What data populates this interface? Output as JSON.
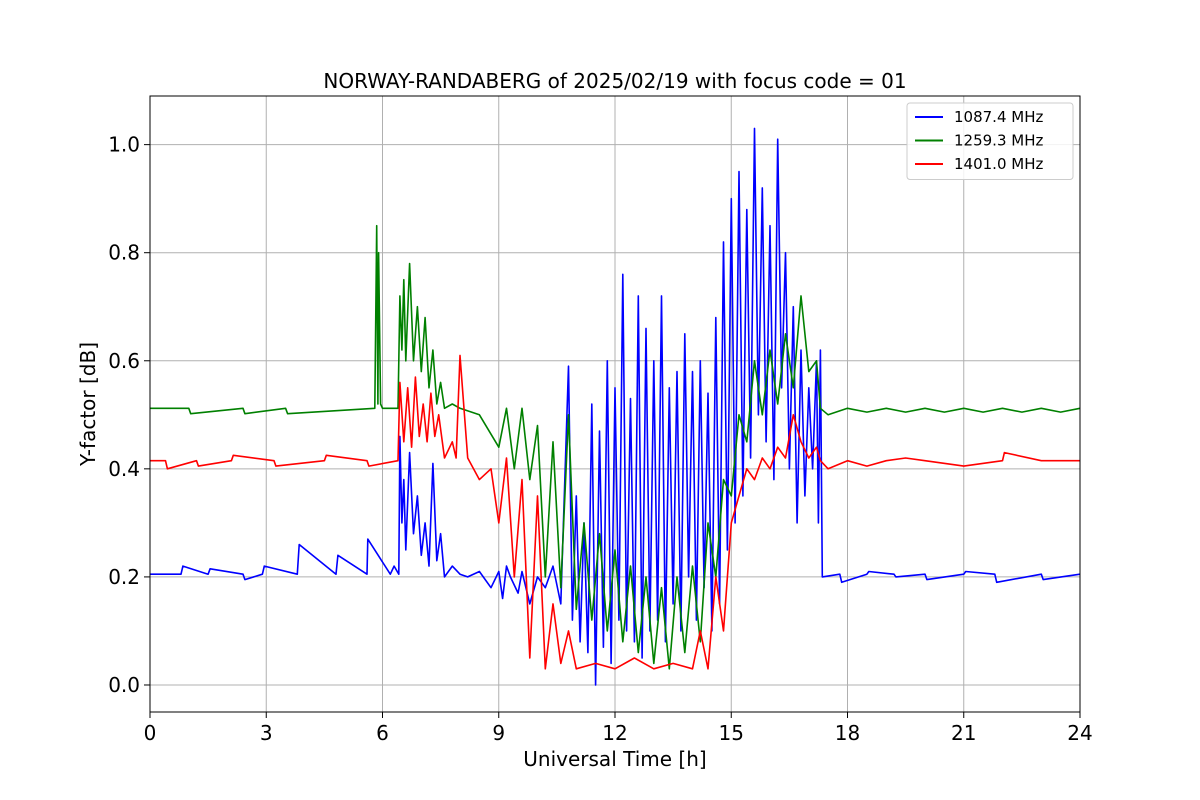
{
  "chart_data": {
    "type": "line",
    "title": "NORWAY-RANDABERG of 2025/02/19 with focus code = 01",
    "xlabel": "Universal Time [h]",
    "ylabel": "Y-factor [dB]",
    "xlim": [
      0,
      24
    ],
    "ylim": [
      -0.05,
      1.09
    ],
    "xticks": [
      0,
      3,
      6,
      9,
      12,
      15,
      18,
      21,
      24
    ],
    "xtick_labels": [
      "0",
      "3",
      "6",
      "9",
      "12",
      "15",
      "18",
      "21",
      "24"
    ],
    "yticks": [
      0.0,
      0.2,
      0.4,
      0.6,
      0.8,
      1.0
    ],
    "ytick_labels": [
      "0.0",
      "0.2",
      "0.4",
      "0.6",
      "0.8",
      "1.0"
    ],
    "grid": true,
    "legend_position": "top-right",
    "series": [
      {
        "name": "1087.4 MHz",
        "color": "#0000ff",
        "x": [
          0,
          0.8,
          0.85,
          1.5,
          1.55,
          2.4,
          2.45,
          2.9,
          2.95,
          3.8,
          3.85,
          4.8,
          4.85,
          5.6,
          5.62,
          6.2,
          6.3,
          6.42,
          6.45,
          6.5,
          6.55,
          6.6,
          6.7,
          6.8,
          6.9,
          7.0,
          7.1,
          7.2,
          7.3,
          7.4,
          7.5,
          7.6,
          7.8,
          8.0,
          8.2,
          8.5,
          8.8,
          9.0,
          9.1,
          9.2,
          9.3,
          9.5,
          9.6,
          9.8,
          10.0,
          10.2,
          10.4,
          10.6,
          10.8,
          10.9,
          11.0,
          11.1,
          11.2,
          11.3,
          11.4,
          11.5,
          11.6,
          11.7,
          11.8,
          11.9,
          12.0,
          12.1,
          12.2,
          12.3,
          12.4,
          12.5,
          12.6,
          12.7,
          12.8,
          12.9,
          13.0,
          13.1,
          13.2,
          13.3,
          13.4,
          13.5,
          13.6,
          13.7,
          13.8,
          13.9,
          14.0,
          14.1,
          14.2,
          14.3,
          14.4,
          14.5,
          14.6,
          14.7,
          14.8,
          14.9,
          15.0,
          15.1,
          15.2,
          15.3,
          15.4,
          15.5,
          15.6,
          15.7,
          15.8,
          15.9,
          16.0,
          16.1,
          16.2,
          16.3,
          16.4,
          16.5,
          16.6,
          16.7,
          16.8,
          16.9,
          17.0,
          17.1,
          17.2,
          17.25,
          17.3,
          17.35,
          17.8,
          17.85,
          18.5,
          18.55,
          19.2,
          19.25,
          20.0,
          20.05,
          21.0,
          21.05,
          21.8,
          21.85,
          23.0,
          23.05,
          24
        ],
        "y": [
          0.205,
          0.205,
          0.22,
          0.205,
          0.215,
          0.205,
          0.195,
          0.205,
          0.22,
          0.205,
          0.26,
          0.205,
          0.24,
          0.205,
          0.27,
          0.205,
          0.22,
          0.205,
          0.46,
          0.3,
          0.38,
          0.25,
          0.43,
          0.28,
          0.35,
          0.24,
          0.3,
          0.22,
          0.41,
          0.23,
          0.28,
          0.2,
          0.22,
          0.205,
          0.2,
          0.21,
          0.18,
          0.21,
          0.16,
          0.22,
          0.2,
          0.17,
          0.21,
          0.15,
          0.2,
          0.18,
          0.22,
          0.15,
          0.59,
          0.12,
          0.35,
          0.08,
          0.3,
          0.06,
          0.52,
          0.0,
          0.47,
          0.07,
          0.6,
          0.04,
          0.55,
          0.12,
          0.76,
          0.1,
          0.53,
          0.08,
          0.72,
          0.05,
          0.66,
          0.1,
          0.6,
          0.12,
          0.72,
          0.08,
          0.55,
          0.15,
          0.58,
          0.1,
          0.65,
          0.2,
          0.58,
          0.12,
          0.6,
          0.18,
          0.54,
          0.1,
          0.68,
          0.15,
          0.82,
          0.25,
          0.9,
          0.3,
          0.95,
          0.35,
          0.88,
          0.42,
          1.03,
          0.5,
          0.92,
          0.45,
          0.85,
          0.38,
          1.01,
          0.55,
          0.8,
          0.4,
          0.7,
          0.3,
          0.62,
          0.35,
          0.55,
          0.4,
          0.6,
          0.3,
          0.62,
          0.2,
          0.205,
          0.19,
          0.205,
          0.21,
          0.205,
          0.2,
          0.205,
          0.195,
          0.205,
          0.21,
          0.205,
          0.19,
          0.205,
          0.195,
          0.205
        ]
      },
      {
        "name": "1259.3 MHz",
        "color": "#008000",
        "x": [
          0,
          1.0,
          1.05,
          2.4,
          2.45,
          3.5,
          3.55,
          5.8,
          5.85,
          5.88,
          5.9,
          5.95,
          6.0,
          6.4,
          6.45,
          6.5,
          6.55,
          6.6,
          6.7,
          6.8,
          6.9,
          7.0,
          7.1,
          7.2,
          7.3,
          7.4,
          7.5,
          7.6,
          7.8,
          8.0,
          8.5,
          9.0,
          9.2,
          9.4,
          9.6,
          9.8,
          10.0,
          10.2,
          10.4,
          10.6,
          10.8,
          11.0,
          11.2,
          11.4,
          11.6,
          11.8,
          12.0,
          12.2,
          12.4,
          12.6,
          12.8,
          13.0,
          13.2,
          13.4,
          13.6,
          13.8,
          14.0,
          14.2,
          14.4,
          14.6,
          14.8,
          15.0,
          15.2,
          15.4,
          15.6,
          15.8,
          16.0,
          16.2,
          16.4,
          16.6,
          16.8,
          17.0,
          17.2,
          17.3,
          17.5,
          18.0,
          18.5,
          19.0,
          19.5,
          20.0,
          20.5,
          21.0,
          21.5,
          22.0,
          22.5,
          23.0,
          23.5,
          24
        ],
        "y": [
          0.512,
          0.512,
          0.502,
          0.512,
          0.502,
          0.512,
          0.502,
          0.512,
          0.85,
          0.52,
          0.8,
          0.52,
          0.512,
          0.512,
          0.72,
          0.62,
          0.75,
          0.6,
          0.78,
          0.6,
          0.7,
          0.58,
          0.68,
          0.55,
          0.62,
          0.52,
          0.56,
          0.512,
          0.52,
          0.512,
          0.5,
          0.44,
          0.512,
          0.4,
          0.512,
          0.38,
          0.48,
          0.2,
          0.45,
          0.18,
          0.5,
          0.14,
          0.3,
          0.12,
          0.28,
          0.1,
          0.25,
          0.08,
          0.22,
          0.06,
          0.2,
          0.04,
          0.18,
          0.03,
          0.2,
          0.06,
          0.22,
          0.08,
          0.3,
          0.2,
          0.38,
          0.35,
          0.5,
          0.45,
          0.6,
          0.5,
          0.62,
          0.52,
          0.65,
          0.55,
          0.72,
          0.58,
          0.6,
          0.512,
          0.5,
          0.512,
          0.505,
          0.512,
          0.505,
          0.512,
          0.505,
          0.512,
          0.505,
          0.512,
          0.505,
          0.512,
          0.505,
          0.512
        ]
      },
      {
        "name": "1401.0 MHz",
        "color": "#ff0000",
        "x": [
          0,
          0.4,
          0.45,
          1.2,
          1.25,
          2.1,
          2.15,
          3.2,
          3.25,
          4.5,
          4.55,
          5.6,
          5.65,
          6.4,
          6.45,
          6.55,
          6.65,
          6.75,
          6.85,
          6.95,
          7.05,
          7.15,
          7.25,
          7.35,
          7.45,
          7.6,
          7.8,
          7.9,
          8.0,
          8.2,
          8.5,
          8.8,
          9.0,
          9.2,
          9.4,
          9.6,
          9.8,
          10.0,
          10.2,
          10.4,
          10.6,
          10.8,
          11.0,
          11.5,
          12.0,
          12.5,
          13.0,
          13.5,
          14.0,
          14.2,
          14.4,
          14.6,
          14.8,
          15.0,
          15.2,
          15.4,
          15.6,
          15.8,
          16.0,
          16.2,
          16.4,
          16.6,
          16.8,
          17.0,
          17.2,
          17.3,
          17.5,
          18.0,
          18.5,
          19.0,
          19.5,
          20.0,
          21.0,
          22.0,
          22.05,
          23.0,
          24
        ],
        "y": [
          0.415,
          0.415,
          0.4,
          0.415,
          0.405,
          0.415,
          0.425,
          0.415,
          0.405,
          0.415,
          0.425,
          0.415,
          0.405,
          0.415,
          0.56,
          0.45,
          0.55,
          0.44,
          0.57,
          0.46,
          0.52,
          0.45,
          0.54,
          0.46,
          0.5,
          0.42,
          0.45,
          0.42,
          0.61,
          0.42,
          0.38,
          0.4,
          0.3,
          0.42,
          0.2,
          0.38,
          0.05,
          0.35,
          0.03,
          0.15,
          0.04,
          0.1,
          0.03,
          0.04,
          0.03,
          0.05,
          0.03,
          0.04,
          0.03,
          0.1,
          0.03,
          0.2,
          0.1,
          0.3,
          0.35,
          0.4,
          0.38,
          0.42,
          0.4,
          0.44,
          0.42,
          0.5,
          0.45,
          0.42,
          0.44,
          0.415,
          0.4,
          0.415,
          0.405,
          0.415,
          0.42,
          0.415,
          0.405,
          0.415,
          0.43,
          0.415,
          0.415
        ]
      }
    ]
  }
}
